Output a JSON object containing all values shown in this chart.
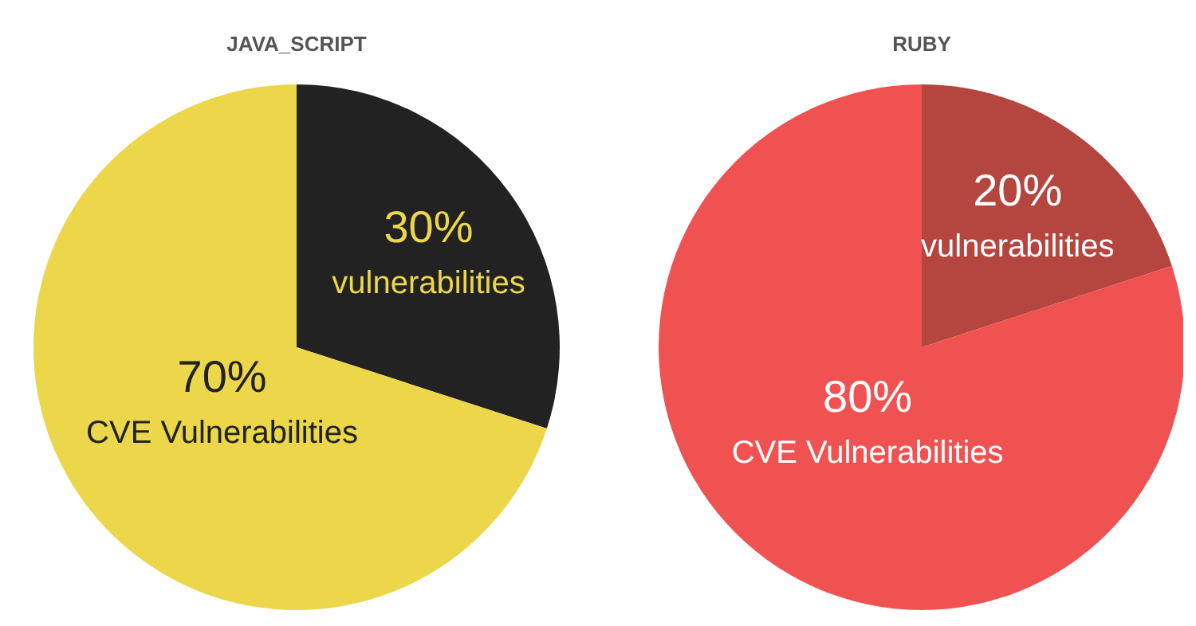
{
  "chart_data": [
    {
      "type": "pie",
      "title": "JAVA_SCRIPT",
      "categories": [
        "vulnerabilities",
        "CVE Vulnerabilities"
      ],
      "values": [
        30,
        70
      ],
      "colors": [
        "#222222",
        "#ecd64a"
      ],
      "value_labels": [
        "30%",
        "70%"
      ]
    },
    {
      "type": "pie",
      "title": "RUBY",
      "categories": [
        "vulnerabilities",
        "CVE Vulnerabilities"
      ],
      "values": [
        20,
        80
      ],
      "colors": [
        "#b5463f",
        "#f05252"
      ],
      "value_labels": [
        "20%",
        "80%"
      ]
    }
  ]
}
